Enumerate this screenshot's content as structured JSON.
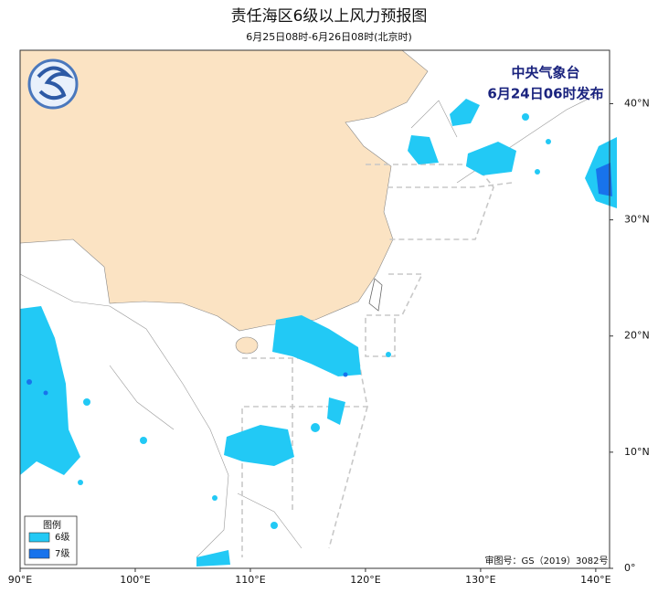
{
  "map": {
    "title": "责任海区6级以上风力预报图",
    "subtitle": "6月25日08时-6月26日08时(北京时)",
    "issuer": "中央气象台",
    "issue_time": "6月24日06时发布",
    "legend": {
      "title": "图例",
      "items": [
        {
          "label": "6级",
          "color": "#22c9f5"
        },
        {
          "label": "7级",
          "color": "#1873ec"
        }
      ]
    },
    "approval": "审图号：GS（2019）3082号",
    "xlim": [
      90,
      141.2
    ],
    "ylim": [
      0,
      44.6
    ],
    "xticks": [
      {
        "value": 90,
        "label": "90°E"
      },
      {
        "value": 100,
        "label": "100°E"
      },
      {
        "value": 110,
        "label": "110°E"
      },
      {
        "value": 120,
        "label": "120°E"
      },
      {
        "value": 130,
        "label": "130°E"
      },
      {
        "value": 140,
        "label": "140°E"
      }
    ],
    "yticks": [
      {
        "value": 0,
        "label": "0°"
      },
      {
        "value": 10,
        "label": "10°N"
      },
      {
        "value": 20,
        "label": "20°N"
      },
      {
        "value": 30,
        "label": "30°N"
      },
      {
        "value": 40,
        "label": "40°N"
      }
    ]
  }
}
